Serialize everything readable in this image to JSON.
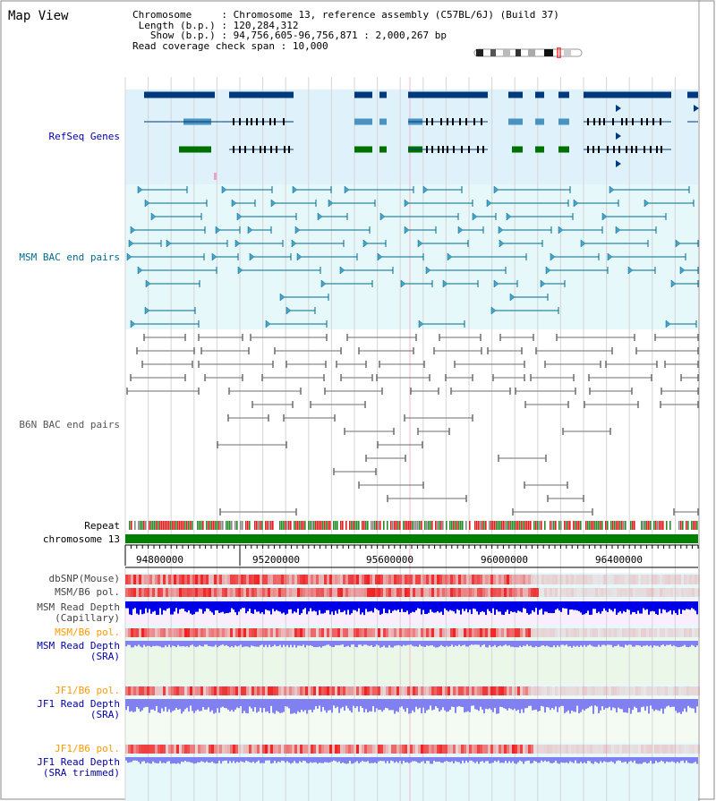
{
  "page": {
    "title": "Map View",
    "info": {
      "chromosome_key": "Chromosome",
      "chromosome_value": "Chromosome 13, reference assembly (C57BL/6J) (Build 37)",
      "length_key": "Length (b.p.)",
      "length_value": "120,284,312",
      "show_key": "Show (b.p.)",
      "show_value": "94,756,605-96,756,871 : 2,000,267 bp",
      "coverage_key": "Read coverage check span",
      "coverage_value": "10,000"
    }
  },
  "colors": {
    "refseq_bg": "#dff1fb",
    "msm_bac_bg": "#e6f8f9",
    "b6n_bg": "#ffffff",
    "gene_blue": "#003a7d",
    "gene_teal": "#4a93c0",
    "gene_green": "#007000",
    "msm_line": "#006b8e",
    "b6n_line": "#6d6d6d",
    "chromosome_bar": "#008000",
    "depth_blue": "#0000e6",
    "depth_light_blue": "#8080f0",
    "pol_red": "#ff3a3a",
    "label_blue": "#0000aa",
    "label_orange": "#ff9900",
    "label_teal": "#006b8e"
  },
  "tracks": {
    "refseq_label": "RefSeq Genes",
    "msm_bac_label": "MSM BAC end pairs",
    "b6n_bac_label": "B6N BAC end pairs",
    "repeat_label": "Repeat",
    "chromosome_label": "chromosome 13",
    "dbsnp_label": "dbSNP(Mouse)",
    "msm_b6_pol_label": "MSM/B6 pol.",
    "msm_read_depth_cap_label": "MSM Read Depth\n(Capillary)",
    "msm_b6_pol2_label": "MSM/B6 pol.",
    "msm_read_depth_sra_label": "MSM Read Depth\n(SRA)",
    "jf1_b6_pol_label": "JF1/B6 pol.",
    "jf1_read_depth_sra_label": "JF1 Read Depth\n(SRA)",
    "jf1_b6_pol2_label": "JF1/B6 pol.",
    "jf1_read_depth_trim_label": "JF1 Read Depth\n(SRA trimmed)"
  },
  "axis": {
    "ticks": [
      "94800000",
      "95200000",
      "95600000",
      "96000000",
      "96400000"
    ]
  }
}
